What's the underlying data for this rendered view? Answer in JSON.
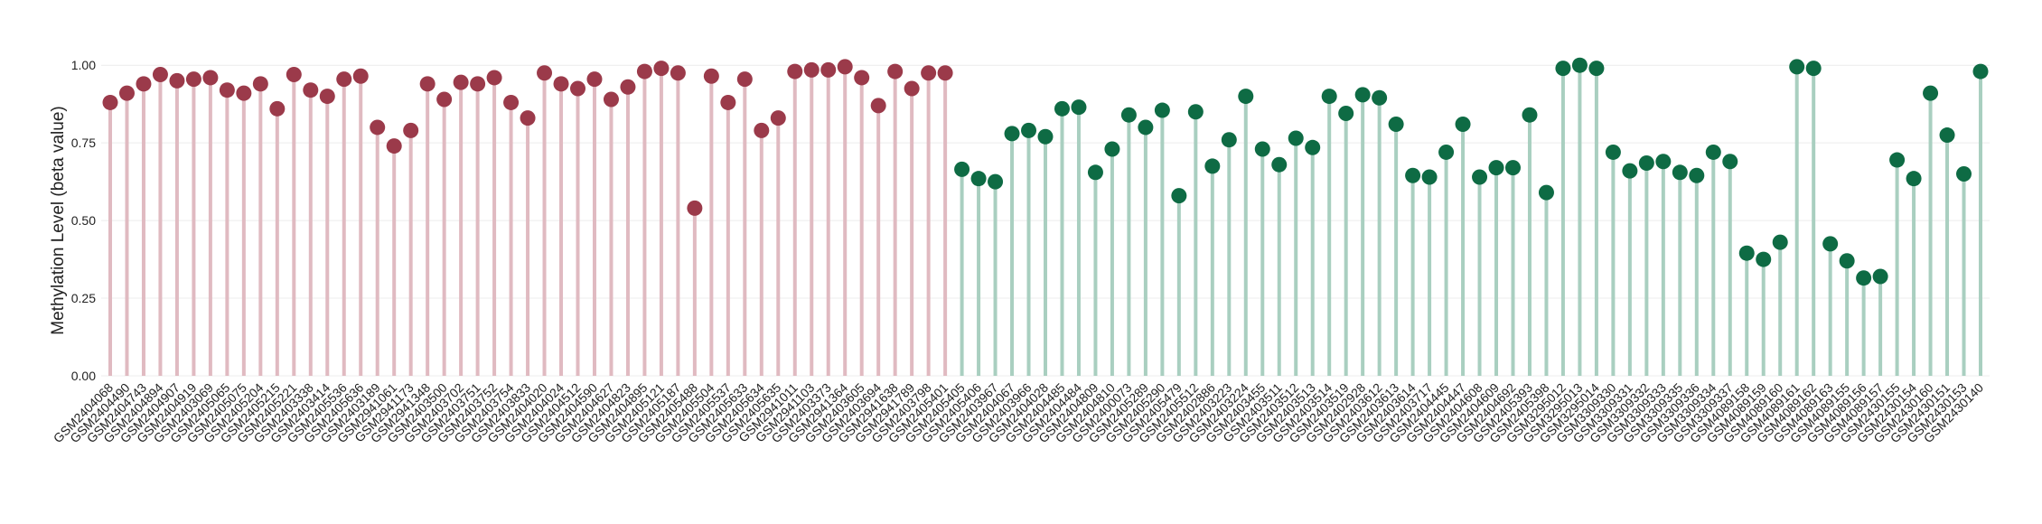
{
  "chart_data": {
    "type": "lollipop",
    "y_label": "Methylation Level (beta value)",
    "ylim": [
      0,
      1.05
    ],
    "yticks": [
      {
        "value": 0,
        "label": "0.00"
      },
      {
        "value": 0.25,
        "label": "0.25"
      },
      {
        "value": 0.5,
        "label": "0.50"
      },
      {
        "value": 0.75,
        "label": "0.75"
      },
      {
        "value": 1,
        "label": "1.00"
      }
    ],
    "grid": true,
    "series": [
      {
        "color": "#9b3a4a",
        "stem_color": "#e0bac1",
        "categories": [
          "GSM2404068",
          "GSM2404490",
          "GSM2404743",
          "GSM2404894",
          "GSM2404907",
          "GSM2404919",
          "GSM2403069",
          "GSM2405065",
          "GSM2405075",
          "GSM2405204",
          "GSM2405215",
          "GSM2405221",
          "GSM2403338",
          "GSM2403414",
          "GSM2405536",
          "GSM2405636",
          "GSM2403189",
          "GSM2941061",
          "GSM2941173",
          "GSM2941348",
          "GSM2403500",
          "GSM2403702",
          "GSM2403751",
          "GSM2403752",
          "GSM2403754",
          "GSM2403833",
          "GSM2404020",
          "GSM2404024",
          "GSM2404512",
          "GSM2404590",
          "GSM2404627",
          "GSM2404823",
          "GSM2404895",
          "GSM2405121",
          "GSM2405187",
          "GSM2405488",
          "GSM2405504",
          "GSM2405537",
          "GSM2405633",
          "GSM2405634",
          "GSM2405635",
          "GSM2941011",
          "GSM2941103",
          "GSM2403373",
          "GSM2941364",
          "GSM2403605",
          "GSM2403694",
          "GSM2941638",
          "GSM2941789",
          "GSM2403798",
          "GSM2405401"
        ],
        "values": [
          0.88,
          0.91,
          0.94,
          0.97,
          0.95,
          0.955,
          0.96,
          0.92,
          0.91,
          0.94,
          0.86,
          0.97,
          0.92,
          0.9,
          0.955,
          0.965,
          0.8,
          0.74,
          0.79,
          0.94,
          0.89,
          0.945,
          0.94,
          0.96,
          0.88,
          0.83,
          0.975,
          0.94,
          0.925,
          0.955,
          0.89,
          0.93,
          0.98,
          0.99,
          0.975,
          0.54,
          0.965,
          0.88,
          0.955,
          0.79,
          0.83,
          0.98,
          0.985,
          0.985,
          0.995,
          0.96,
          0.87,
          0.98,
          0.925,
          0.975,
          0.975
        ]
      },
      {
        "color": "#0e6b44",
        "stem_color": "#a9cfc0",
        "categories": [
          "GSM2405405",
          "GSM2405406",
          "GSM2403967",
          "GSM2404067",
          "GSM2403966",
          "GSM2404028",
          "GSM2404485",
          "GSM2404484",
          "GSM2404809",
          "GSM2404810",
          "GSM2400073",
          "GSM2405289",
          "GSM2405290",
          "GSM2405479",
          "GSM2405512",
          "GSM2402886",
          "GSM2403223",
          "GSM2403224",
          "GSM2403455",
          "GSM2403511",
          "GSM2403512",
          "GSM2403513",
          "GSM2403514",
          "GSM2403519",
          "GSM2402928",
          "GSM2403612",
          "GSM2403613",
          "GSM2403614",
          "GSM2403717",
          "GSM2404445",
          "GSM2404447",
          "GSM2404608",
          "GSM2404609",
          "GSM2404692",
          "GSM2405393",
          "GSM2405398",
          "GSM3295012",
          "GSM3295013",
          "GSM3295014",
          "GSM3309330",
          "GSM3309331",
          "GSM3309332",
          "GSM3309333",
          "GSM3309335",
          "GSM3309336",
          "GSM3309334",
          "GSM3309337",
          "GSM4089158",
          "GSM4089159",
          "GSM4089160",
          "GSM4089161",
          "GSM4089162",
          "GSM4089163",
          "GSM4089155",
          "GSM4089156",
          "GSM4089157",
          "GSM2430155",
          "GSM2430154",
          "GSM2430160",
          "GSM2430151",
          "GSM2430153",
          "GSM2430140"
        ],
        "values": [
          0.665,
          0.635,
          0.625,
          0.78,
          0.79,
          0.77,
          0.86,
          0.865,
          0.655,
          0.73,
          0.84,
          0.8,
          0.855,
          0.58,
          0.85,
          0.675,
          0.76,
          0.9,
          0.73,
          0.68,
          0.765,
          0.735,
          0.9,
          0.845,
          0.905,
          0.895,
          0.81,
          0.645,
          0.64,
          0.72,
          0.81,
          0.64,
          0.67,
          0.67,
          0.84,
          0.59,
          0.99,
          1.0,
          0.99,
          0.72,
          0.66,
          0.685,
          0.69,
          0.655,
          0.645,
          0.72,
          0.69,
          0.395,
          0.375,
          0.43,
          0.995,
          0.99,
          0.425,
          0.37,
          0.315,
          0.32,
          0.695,
          0.635,
          0.91,
          0.775,
          0.65,
          0.98
        ]
      }
    ]
  }
}
